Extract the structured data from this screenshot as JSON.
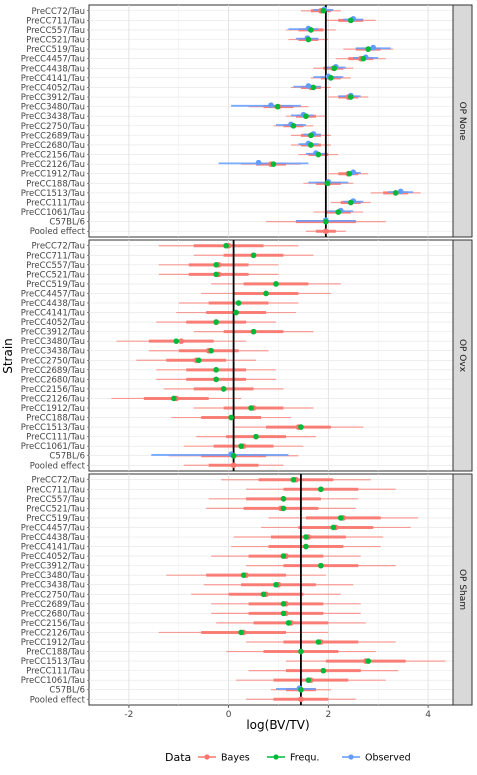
{
  "chart_data": {
    "type": "forest",
    "xlabel": "log(BV/TV)",
    "ylabel": "Strain",
    "xlim": [
      -2.8,
      4.5
    ],
    "x_ticks": [
      -2,
      0,
      2,
      4
    ],
    "grid": true,
    "strains": [
      "PreCC72/Tau",
      "PreCC711/Tau",
      "PreCC557/Tau",
      "PreCC521/Tau",
      "PreCC519/Tau",
      "PreCC4457/Tau",
      "PreCC4438/Tau",
      "PreCC4141/Tau",
      "PreCC4052/Tau",
      "PreCC3912/Tau",
      "PreCC3480/Tau",
      "PreCC3438/Tau",
      "PreCC2750/Tau",
      "PreCC2689/Tau",
      "PreCC2680/Tau",
      "PreCC2156/Tau",
      "PreCC2126/Tau",
      "PreCC1912/Tau",
      "PreCC188/Tau",
      "PreCC1513/Tau",
      "PreCC111/Tau",
      "PreCC1061/Tau",
      "C57BL/6",
      "Pooled effect"
    ],
    "legend": {
      "title": "Data",
      "position": "bottom",
      "entries": [
        {
          "label": "Bayes",
          "color": "#F8766D"
        },
        {
          "label": "Frequ.",
          "color": "#00BA38"
        },
        {
          "label": "Observed",
          "color": "#619CFF"
        }
      ]
    },
    "panels": [
      {
        "label": "OP None",
        "pooled_line": 1.95,
        "bayes": [
          [
            1.85,
            1.65,
            2.05,
            1.45,
            2.25
          ],
          [
            2.45,
            2.2,
            2.7,
            1.95,
            2.95
          ],
          [
            1.65,
            1.4,
            1.9,
            1.15,
            2.15
          ],
          [
            1.6,
            1.4,
            1.8,
            1.2,
            2.0
          ],
          [
            2.8,
            2.55,
            3.05,
            2.3,
            3.3
          ],
          [
            2.65,
            2.4,
            2.9,
            2.15,
            3.15
          ],
          [
            2.1,
            1.9,
            2.3,
            1.7,
            2.5
          ],
          [
            2.05,
            1.85,
            2.25,
            1.65,
            2.45
          ],
          [
            1.65,
            1.45,
            1.85,
            1.25,
            2.05
          ],
          [
            2.4,
            2.2,
            2.6,
            2.0,
            2.8
          ],
          [
            1.0,
            0.7,
            1.3,
            0.4,
            1.6
          ],
          [
            1.55,
            1.35,
            1.75,
            1.15,
            1.95
          ],
          [
            1.3,
            1.1,
            1.5,
            0.9,
            1.7
          ],
          [
            1.65,
            1.45,
            1.85,
            1.25,
            2.05
          ],
          [
            1.65,
            1.45,
            1.85,
            1.25,
            2.05
          ],
          [
            1.8,
            1.6,
            2.0,
            1.4,
            2.2
          ],
          [
            0.85,
            0.55,
            1.15,
            0.25,
            1.45
          ],
          [
            2.4,
            2.2,
            2.6,
            2.0,
            2.8
          ],
          [
            2.0,
            1.75,
            2.25,
            1.5,
            2.5
          ],
          [
            3.35,
            3.1,
            3.6,
            2.85,
            3.85
          ],
          [
            2.45,
            2.25,
            2.65,
            2.05,
            2.85
          ],
          [
            2.2,
            1.95,
            2.45,
            1.7,
            2.7
          ],
          [
            1.95,
            1.35,
            2.55,
            0.75,
            3.15
          ],
          [
            1.95,
            1.75,
            2.15,
            1.55,
            2.35
          ]
        ],
        "frequ": [
          1.9,
          2.45,
          1.65,
          1.6,
          2.8,
          2.7,
          2.12,
          2.05,
          1.7,
          2.45,
          0.98,
          1.55,
          1.3,
          1.65,
          1.65,
          1.8,
          0.9,
          2.42,
          1.98,
          3.35,
          2.45,
          2.2,
          1.95,
          null
        ],
        "observed": [
          [
            1.92,
            1.7,
            2.1
          ],
          [
            2.5,
            2.3,
            2.7
          ],
          [
            1.6,
            1.2,
            1.8
          ],
          [
            1.58,
            1.35,
            1.8
          ],
          [
            2.9,
            2.55,
            3.25
          ],
          [
            2.75,
            2.5,
            3.0
          ],
          [
            2.15,
            1.95,
            2.35
          ],
          [
            2.0,
            1.7,
            2.3
          ],
          [
            1.6,
            1.3,
            1.85
          ],
          [
            2.45,
            2.2,
            2.65
          ],
          [
            0.85,
            0.05,
            1.45
          ],
          [
            1.5,
            1.25,
            1.7
          ],
          [
            1.25,
            0.95,
            1.55
          ],
          [
            1.7,
            1.5,
            1.85
          ],
          [
            1.6,
            1.4,
            1.8
          ],
          [
            1.75,
            1.55,
            1.95
          ],
          [
            0.6,
            -0.2,
            1.6
          ],
          [
            2.5,
            2.35,
            2.65
          ],
          [
            2.0,
            1.6,
            2.4
          ],
          [
            3.45,
            3.2,
            3.7
          ],
          [
            2.5,
            2.3,
            2.7
          ],
          [
            2.25,
            2.0,
            2.5
          ],
          [
            1.95,
            1.35,
            2.55
          ],
          null
        ]
      },
      {
        "label": "OP Ovx",
        "pooled_line": 0.1,
        "bayes": [
          [
            0.0,
            -0.7,
            0.7,
            -1.4,
            1.4
          ],
          [
            0.5,
            -0.1,
            1.1,
            -0.7,
            1.7
          ],
          [
            -0.2,
            -0.8,
            0.4,
            -1.4,
            1.0
          ],
          [
            -0.2,
            -0.8,
            0.4,
            -1.4,
            1.0
          ],
          [
            0.95,
            0.3,
            1.6,
            -0.35,
            2.25
          ],
          [
            0.75,
            0.1,
            1.4,
            -0.55,
            2.05
          ],
          [
            0.2,
            -0.4,
            0.8,
            -1.0,
            1.4
          ],
          [
            0.15,
            -0.45,
            0.75,
            -1.05,
            1.35
          ],
          [
            -0.25,
            -0.85,
            0.35,
            -1.45,
            0.95
          ],
          [
            0.5,
            -0.1,
            1.1,
            -0.7,
            1.7
          ],
          [
            -0.95,
            -1.6,
            -0.3,
            -2.25,
            0.35
          ],
          [
            -0.4,
            -1.0,
            0.2,
            -1.6,
            0.8
          ],
          [
            -0.65,
            -1.25,
            -0.05,
            -1.85,
            0.55
          ],
          [
            -0.25,
            -0.85,
            0.35,
            -1.45,
            0.95
          ],
          [
            -0.25,
            -0.85,
            0.35,
            -1.45,
            0.95
          ],
          [
            -0.1,
            -0.7,
            0.5,
            -1.3,
            1.1
          ],
          [
            -1.05,
            -1.7,
            -0.4,
            -2.35,
            0.25
          ],
          [
            0.5,
            -0.1,
            1.1,
            -0.7,
            1.7
          ],
          [
            0.05,
            -0.55,
            0.65,
            -1.15,
            1.25
          ],
          [
            1.4,
            0.75,
            2.05,
            0.1,
            2.7
          ],
          [
            0.55,
            -0.05,
            1.15,
            -0.65,
            1.75
          ],
          [
            0.3,
            -0.3,
            0.9,
            -0.9,
            1.5
          ],
          [
            0.1,
            -0.55,
            0.75,
            -1.2,
            1.4
          ],
          [
            0.1,
            -0.4,
            0.6,
            -0.9,
            1.1
          ]
        ],
        "frequ": [
          -0.05,
          0.5,
          -0.25,
          -0.25,
          0.95,
          0.75,
          0.2,
          0.15,
          -0.25,
          0.5,
          -1.05,
          -0.35,
          -0.6,
          -0.25,
          -0.25,
          -0.1,
          -1.1,
          0.45,
          0.05,
          1.45,
          0.55,
          0.25,
          0.1,
          null
        ],
        "observed": [
          null,
          null,
          null,
          null,
          null,
          null,
          null,
          null,
          null,
          null,
          null,
          null,
          null,
          null,
          null,
          null,
          null,
          null,
          null,
          null,
          null,
          null,
          [
            0.05,
            -1.55,
            1.2
          ],
          null
        ]
      },
      {
        "label": "OP Sham",
        "pooled_line": 1.45,
        "bayes": [
          [
            1.35,
            0.6,
            2.1,
            -0.15,
            2.85
          ],
          [
            1.85,
            1.1,
            2.6,
            0.35,
            3.35
          ],
          [
            1.1,
            0.35,
            1.85,
            -0.4,
            2.6
          ],
          [
            1.05,
            0.3,
            1.8,
            -0.45,
            2.55
          ],
          [
            2.3,
            1.55,
            3.05,
            0.8,
            3.8
          ],
          [
            2.15,
            1.4,
            2.9,
            0.65,
            3.65
          ],
          [
            1.6,
            0.85,
            2.35,
            0.1,
            3.1
          ],
          [
            1.55,
            0.8,
            2.3,
            0.05,
            3.05
          ],
          [
            1.15,
            0.4,
            1.9,
            -0.35,
            2.65
          ],
          [
            1.85,
            1.1,
            2.6,
            0.35,
            3.35
          ],
          [
            0.35,
            -0.45,
            1.15,
            -1.25,
            1.95
          ],
          [
            1.0,
            0.25,
            1.75,
            -0.5,
            2.5
          ],
          [
            0.75,
            0.0,
            1.5,
            -0.75,
            2.25
          ],
          [
            1.15,
            0.4,
            1.9,
            -0.35,
            2.65
          ],
          [
            1.15,
            0.4,
            1.9,
            -0.35,
            2.65
          ],
          [
            1.25,
            0.5,
            2.0,
            -0.25,
            2.75
          ],
          [
            0.3,
            -0.55,
            1.15,
            -1.4,
            2.0
          ],
          [
            1.85,
            1.1,
            2.6,
            0.35,
            3.35
          ],
          [
            1.45,
            0.7,
            2.2,
            -0.05,
            2.95
          ],
          [
            2.75,
            1.95,
            3.55,
            1.15,
            4.35
          ],
          [
            1.9,
            1.15,
            2.65,
            0.4,
            3.4
          ],
          [
            1.65,
            0.9,
            2.4,
            0.15,
            3.15
          ],
          [
            1.45,
            1.15,
            1.75,
            0.85,
            2.05
          ],
          [
            1.45,
            0.9,
            2.0,
            0.35,
            2.55
          ]
        ],
        "frequ": [
          1.3,
          1.85,
          1.1,
          1.1,
          2.25,
          2.1,
          1.55,
          1.55,
          1.1,
          1.85,
          0.3,
          0.95,
          0.7,
          1.1,
          1.1,
          1.2,
          0.25,
          1.8,
          1.45,
          2.8,
          1.9,
          1.6,
          1.45,
          null
        ],
        "observed": [
          null,
          null,
          null,
          null,
          null,
          null,
          null,
          null,
          null,
          null,
          null,
          null,
          null,
          null,
          null,
          null,
          null,
          null,
          null,
          null,
          null,
          null,
          [
            1.42,
            0.95,
            1.75
          ],
          null
        ]
      }
    ]
  }
}
